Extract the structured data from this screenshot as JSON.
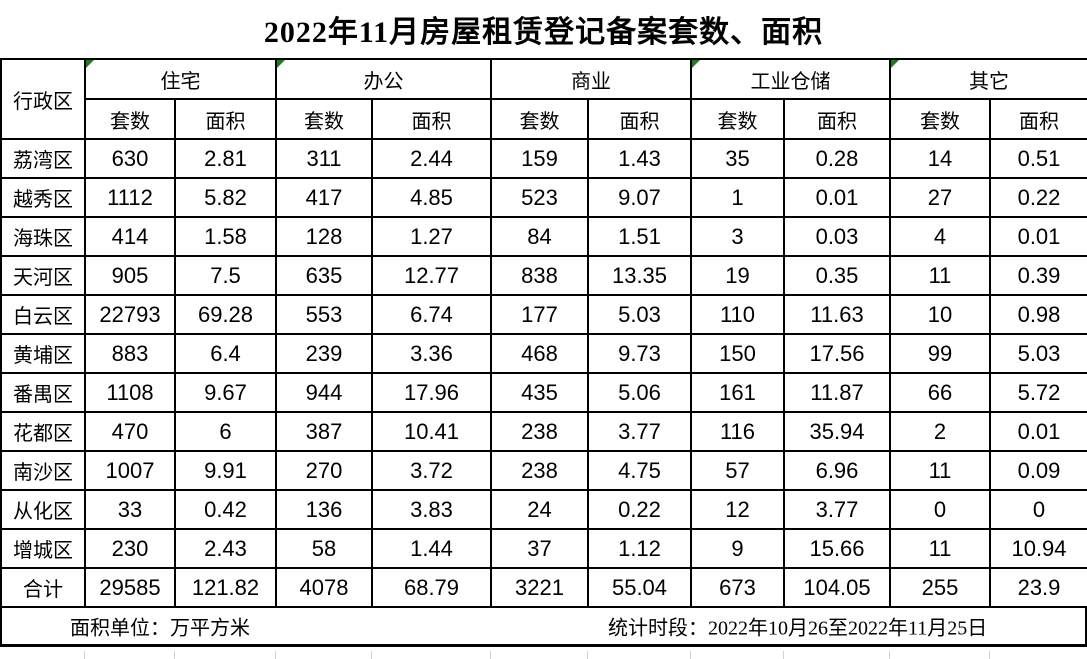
{
  "title": "2022年11月房屋租赁登记备案套数、面积",
  "colors": {
    "border": "#000000",
    "flag_green": "#1e7e1e",
    "grid_gray": "#d2d2d2"
  },
  "table": {
    "corner_header": "行政区",
    "sub_headers": [
      "套数",
      "面积"
    ],
    "groups": [
      {
        "label": "住宅",
        "flagged": true
      },
      {
        "label": "办公",
        "flagged": true
      },
      {
        "label": "商业",
        "flagged": false
      },
      {
        "label": "工业仓储",
        "flagged": true
      },
      {
        "label": "其它",
        "flagged": true
      }
    ],
    "rows": [
      {
        "district": "荔湾区",
        "values": [
          "630",
          "2.81",
          "311",
          "2.44",
          "159",
          "1.43",
          "35",
          "0.28",
          "14",
          "0.51"
        ]
      },
      {
        "district": "越秀区",
        "values": [
          "1112",
          "5.82",
          "417",
          "4.85",
          "523",
          "9.07",
          "1",
          "0.01",
          "27",
          "0.22"
        ]
      },
      {
        "district": "海珠区",
        "values": [
          "414",
          "1.58",
          "128",
          "1.27",
          "84",
          "1.51",
          "3",
          "0.03",
          "4",
          "0.01"
        ]
      },
      {
        "district": "天河区",
        "values": [
          "905",
          "7.5",
          "635",
          "12.77",
          "838",
          "13.35",
          "19",
          "0.35",
          "11",
          "0.39"
        ]
      },
      {
        "district": "白云区",
        "values": [
          "22793",
          "69.28",
          "553",
          "6.74",
          "177",
          "5.03",
          "110",
          "11.63",
          "10",
          "0.98"
        ]
      },
      {
        "district": "黄埔区",
        "values": [
          "883",
          "6.4",
          "239",
          "3.36",
          "468",
          "9.73",
          "150",
          "17.56",
          "99",
          "5.03"
        ]
      },
      {
        "district": "番禺区",
        "values": [
          "1108",
          "9.67",
          "944",
          "17.96",
          "435",
          "5.06",
          "161",
          "11.87",
          "66",
          "5.72"
        ]
      },
      {
        "district": "花都区",
        "values": [
          "470",
          "6",
          "387",
          "10.41",
          "238",
          "3.77",
          "116",
          "35.94",
          "2",
          "0.01"
        ]
      },
      {
        "district": "南沙区",
        "values": [
          "1007",
          "9.91",
          "270",
          "3.72",
          "238",
          "4.75",
          "57",
          "6.96",
          "11",
          "0.09"
        ]
      },
      {
        "district": "从化区",
        "values": [
          "33",
          "0.42",
          "136",
          "3.83",
          "24",
          "0.22",
          "12",
          "3.77",
          "0",
          "0"
        ]
      },
      {
        "district": "增城区",
        "values": [
          "230",
          "2.43",
          "58",
          "1.44",
          "37",
          "1.12",
          "9",
          "15.66",
          "11",
          "10.94"
        ]
      }
    ],
    "total_row": {
      "district": "合计",
      "values": [
        "29585",
        "121.82",
        "4078",
        "68.79",
        "3221",
        "55.04",
        "673",
        "104.05",
        "255",
        "23.9"
      ]
    }
  },
  "footer": {
    "unit_note": "面积单位：万平方米",
    "period_note": "统计时段：2022年10月26至2022年11月25日"
  }
}
